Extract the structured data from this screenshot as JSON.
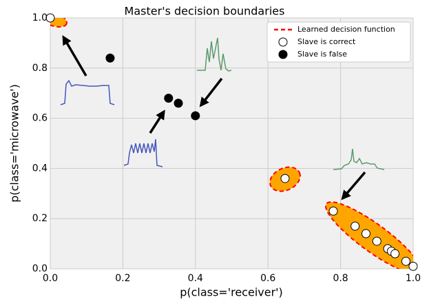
{
  "chart_data": {
    "type": "scatter",
    "title": "Master's decision boundaries",
    "x_label": "p(class='receiver')",
    "y_label": "p(class='microwave')",
    "xlim": [
      0,
      1
    ],
    "ylim": [
      0,
      1
    ],
    "xticks": [
      {
        "value": 0,
        "label": "0.0"
      },
      {
        "value": 0.2,
        "label": "0.2"
      },
      {
        "value": 0.4,
        "label": "0.4"
      },
      {
        "value": 0.6,
        "label": "0.6"
      },
      {
        "value": 0.8,
        "label": "0.8"
      },
      {
        "value": 1,
        "label": "1.0"
      }
    ],
    "yticks": [
      {
        "value": 0,
        "label": "0.0"
      },
      {
        "value": 0.2,
        "label": "0.2"
      },
      {
        "value": 0.4,
        "label": "0.4"
      },
      {
        "value": 0.6,
        "label": "0.6"
      },
      {
        "value": 0.8,
        "label": "0.8"
      },
      {
        "value": 1,
        "label": "1.0"
      }
    ],
    "grid": true,
    "legend": "upper right",
    "boundary": {
      "name": "Learned decision function",
      "color": "#ff0000"
    },
    "series": [
      {
        "name": "Slave is correct",
        "color": "#ffffff",
        "x": [
          0.0,
          0.647,
          0.78,
          0.84,
          0.87,
          0.9,
          0.93,
          0.94,
          0.95,
          0.98,
          1.0
        ],
        "values": [
          1.0,
          0.36,
          0.23,
          0.17,
          0.14,
          0.11,
          0.08,
          0.07,
          0.06,
          0.03,
          0.01
        ]
      },
      {
        "name": "Slave is false",
        "color": "#000000",
        "x": [
          0.165,
          0.326,
          0.353,
          0.4
        ],
        "values": [
          0.84,
          0.68,
          0.66,
          0.61
        ]
      }
    ]
  }
}
